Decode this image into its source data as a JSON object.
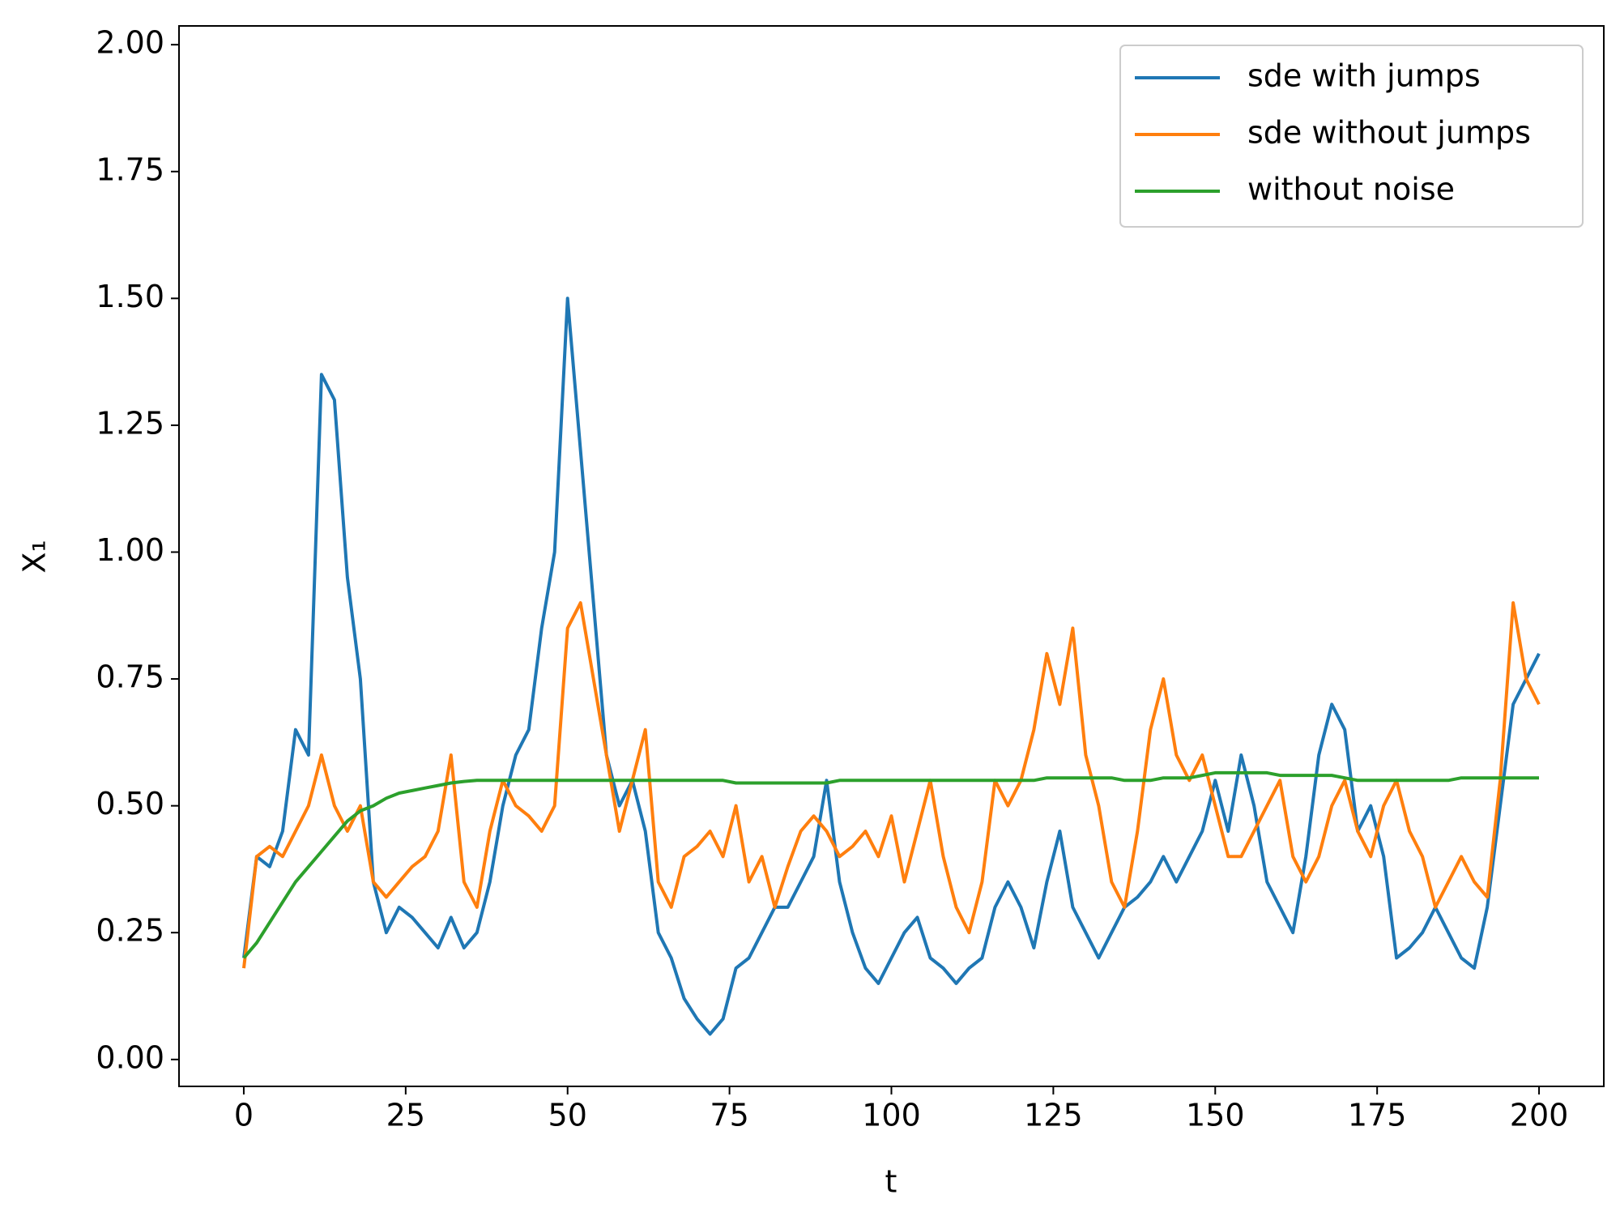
{
  "chart_data": {
    "type": "line",
    "xlabel": "t",
    "ylabel": "X₁",
    "x": [
      0,
      2,
      4,
      6,
      8,
      10,
      12,
      14,
      16,
      18,
      20,
      22,
      24,
      26,
      28,
      30,
      32,
      34,
      36,
      38,
      40,
      42,
      44,
      46,
      48,
      50,
      52,
      54,
      56,
      58,
      60,
      62,
      64,
      66,
      68,
      70,
      72,
      74,
      76,
      78,
      80,
      82,
      84,
      86,
      88,
      90,
      92,
      94,
      96,
      98,
      100,
      102,
      104,
      106,
      108,
      110,
      112,
      114,
      116,
      118,
      120,
      122,
      124,
      126,
      128,
      130,
      132,
      134,
      136,
      138,
      140,
      142,
      144,
      146,
      148,
      150,
      152,
      154,
      156,
      158,
      160,
      162,
      164,
      166,
      168,
      170,
      172,
      174,
      176,
      178,
      180,
      182,
      184,
      186,
      188,
      190,
      192,
      194,
      196,
      198,
      200
    ],
    "series": [
      {
        "name": "sde with jumps",
        "color": "#1f77b4",
        "values": [
          0.2,
          0.4,
          0.38,
          0.45,
          0.65,
          0.6,
          1.35,
          1.3,
          0.95,
          0.75,
          0.35,
          0.25,
          0.3,
          0.28,
          0.25,
          0.22,
          0.28,
          0.22,
          0.25,
          0.35,
          0.5,
          0.6,
          0.65,
          0.85,
          1.0,
          1.5,
          1.2,
          0.9,
          0.6,
          0.5,
          0.55,
          0.45,
          0.25,
          0.2,
          0.12,
          0.08,
          0.05,
          0.08,
          0.18,
          0.2,
          0.25,
          0.3,
          0.3,
          0.35,
          0.4,
          0.55,
          0.35,
          0.25,
          0.18,
          0.15,
          0.2,
          0.25,
          0.28,
          0.2,
          0.18,
          0.15,
          0.18,
          0.2,
          0.3,
          0.35,
          0.3,
          0.22,
          0.35,
          0.45,
          0.3,
          0.25,
          0.2,
          0.25,
          0.3,
          0.32,
          0.35,
          0.4,
          0.35,
          0.4,
          0.45,
          0.55,
          0.45,
          0.6,
          0.5,
          0.35,
          0.3,
          0.25,
          0.4,
          0.6,
          0.7,
          0.65,
          0.45,
          0.5,
          0.4,
          0.2,
          0.22,
          0.25,
          0.3,
          0.25,
          0.2,
          0.18,
          0.3,
          0.5,
          0.7,
          0.75,
          0.8
        ]
      },
      {
        "name": "sde without jumps",
        "color": "#ff7f0e",
        "values": [
          0.18,
          0.4,
          0.42,
          0.4,
          0.45,
          0.5,
          0.6,
          0.5,
          0.45,
          0.5,
          0.35,
          0.32,
          0.35,
          0.38,
          0.4,
          0.45,
          0.6,
          0.35,
          0.3,
          0.45,
          0.55,
          0.5,
          0.48,
          0.45,
          0.5,
          0.85,
          0.9,
          0.75,
          0.6,
          0.45,
          0.55,
          0.65,
          0.35,
          0.3,
          0.4,
          0.42,
          0.45,
          0.4,
          0.5,
          0.35,
          0.4,
          0.3,
          0.38,
          0.45,
          0.48,
          0.45,
          0.4,
          0.42,
          0.45,
          0.4,
          0.48,
          0.35,
          0.45,
          0.55,
          0.4,
          0.3,
          0.25,
          0.35,
          0.55,
          0.5,
          0.55,
          0.65,
          0.8,
          0.7,
          0.85,
          0.6,
          0.5,
          0.35,
          0.3,
          0.45,
          0.65,
          0.75,
          0.6,
          0.55,
          0.6,
          0.5,
          0.4,
          0.4,
          0.45,
          0.5,
          0.55,
          0.4,
          0.35,
          0.4,
          0.5,
          0.55,
          0.45,
          0.4,
          0.5,
          0.55,
          0.45,
          0.4,
          0.3,
          0.35,
          0.4,
          0.35,
          0.32,
          0.55,
          0.9,
          0.75,
          0.7
        ]
      },
      {
        "name": "without noise",
        "color": "#2ca02c",
        "values": [
          0.2,
          0.23,
          0.27,
          0.31,
          0.35,
          0.38,
          0.41,
          0.44,
          0.47,
          0.49,
          0.5,
          0.515,
          0.525,
          0.53,
          0.535,
          0.54,
          0.545,
          0.548,
          0.55,
          0.55,
          0.55,
          0.55,
          0.55,
          0.55,
          0.55,
          0.55,
          0.55,
          0.55,
          0.55,
          0.55,
          0.55,
          0.55,
          0.55,
          0.55,
          0.55,
          0.55,
          0.55,
          0.55,
          0.545,
          0.545,
          0.545,
          0.545,
          0.545,
          0.545,
          0.545,
          0.545,
          0.55,
          0.55,
          0.55,
          0.55,
          0.55,
          0.55,
          0.55,
          0.55,
          0.55,
          0.55,
          0.55,
          0.55,
          0.55,
          0.55,
          0.55,
          0.55,
          0.555,
          0.555,
          0.555,
          0.555,
          0.555,
          0.555,
          0.55,
          0.55,
          0.55,
          0.555,
          0.555,
          0.555,
          0.56,
          0.565,
          0.565,
          0.565,
          0.565,
          0.565,
          0.56,
          0.56,
          0.56,
          0.56,
          0.56,
          0.555,
          0.55,
          0.55,
          0.55,
          0.55,
          0.55,
          0.55,
          0.55,
          0.55,
          0.555,
          0.555,
          0.555,
          0.555,
          0.555,
          0.555,
          0.555
        ]
      }
    ],
    "xlim": [
      -10,
      210
    ],
    "ylim": [
      -0.053,
      2.037
    ],
    "xticks": [
      0,
      25,
      50,
      75,
      100,
      125,
      150,
      175,
      200
    ],
    "yticks": [
      {
        "value": 0,
        "label": "0.00"
      },
      {
        "value": 0.25,
        "label": "0.25"
      },
      {
        "value": 0.5,
        "label": "0.50"
      },
      {
        "value": 0.75,
        "label": "0.75"
      },
      {
        "value": 1,
        "label": "1.00"
      },
      {
        "value": 1.25,
        "label": "1.25"
      },
      {
        "value": 1.5,
        "label": "1.50"
      },
      {
        "value": 1.75,
        "label": "1.75"
      },
      {
        "value": 2,
        "label": "2.00"
      }
    ],
    "legend": "upper right",
    "grid": false
  }
}
